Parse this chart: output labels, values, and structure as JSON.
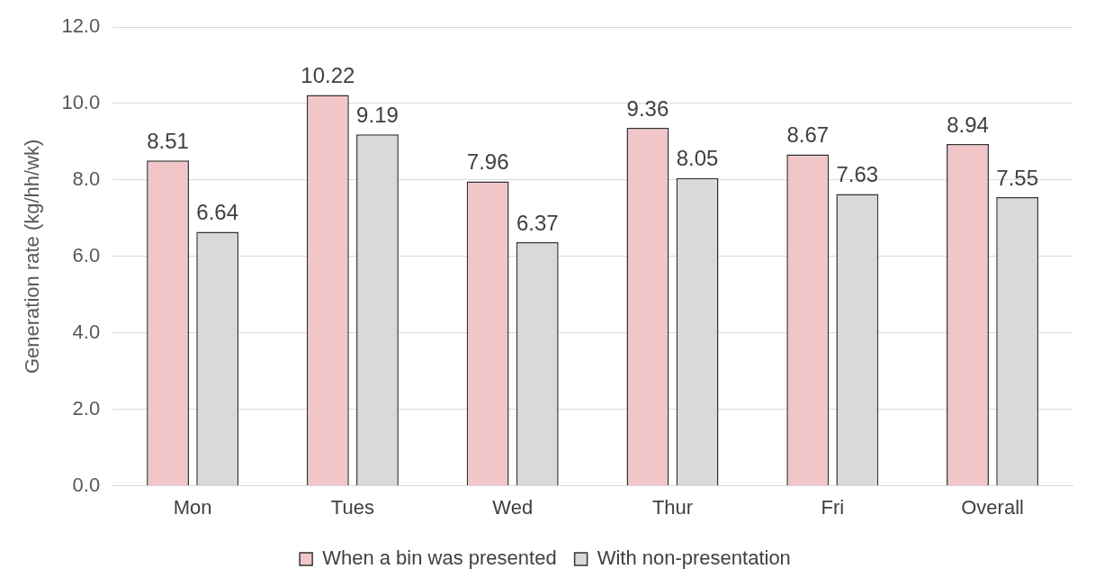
{
  "chart_data": {
    "type": "bar",
    "ylabel": "Generation rate (kg/hh/wk)",
    "categories": [
      "Mon",
      "Tues",
      "Wed",
      "Thur",
      "Fri",
      "Overall"
    ],
    "series": [
      {
        "name": "When a bin was presented",
        "color": "#f2c6c9",
        "values": [
          8.51,
          10.22,
          7.96,
          9.36,
          8.67,
          8.94
        ]
      },
      {
        "name": "With non-presentation",
        "color": "#d9d9d9",
        "values": [
          6.64,
          9.19,
          6.37,
          8.05,
          7.63,
          7.55
        ]
      }
    ],
    "ylim": [
      0,
      12
    ],
    "yticks": [
      {
        "value": 0,
        "label": "0.0"
      },
      {
        "value": 2,
        "label": "2.0"
      },
      {
        "value": 4,
        "label": "4.0"
      },
      {
        "value": 6,
        "label": "6.0"
      },
      {
        "value": 8,
        "label": "8.0"
      },
      {
        "value": 10,
        "label": "10.0"
      },
      {
        "value": 12,
        "label": "12.0"
      }
    ],
    "grid": "y",
    "legend": "bottom",
    "data_labels": true
  }
}
